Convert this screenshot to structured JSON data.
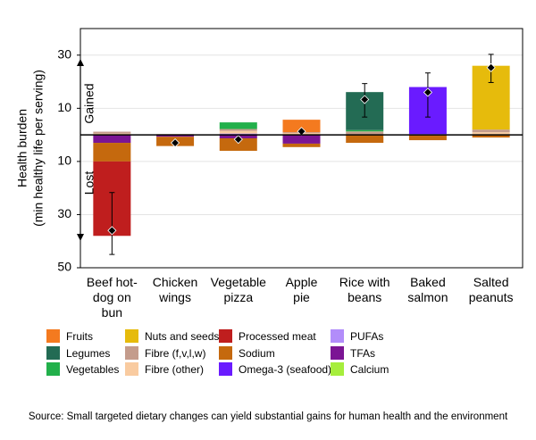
{
  "chart_data": {
    "type": "stacked_bar",
    "y_label": [
      "Health burden",
      "(min healthy life per serving)"
    ],
    "annotations": {
      "gained": "Gained",
      "lost": "Lost"
    },
    "source": "Source: Small targeted dietary changes can yield substantial gains for human health and the environment",
    "categories": [
      "Beef hot-\ndog on\nbun",
      "Chicken\nwings",
      "Vegetable\npizza",
      "Apple\npie",
      "Rice with\nbeans",
      "Baked\nsalmon",
      "Salted\npeanuts"
    ],
    "ylim": [
      -50,
      40
    ],
    "yticks": [
      30,
      10,
      {
        "value": -10,
        "label": "10"
      },
      {
        "value": -30,
        "label": "30"
      },
      {
        "value": -50,
        "label": "50"
      }
    ],
    "grid": true,
    "series": [
      {
        "name": "Fruits",
        "color": "#f47a1f",
        "values": [
          0,
          0,
          0,
          4.7,
          0,
          0,
          0
        ]
      },
      {
        "name": "Legumes",
        "color": "#236b54",
        "values": [
          0,
          0,
          0,
          0,
          14.3,
          0,
          0
        ]
      },
      {
        "name": "Vegetables",
        "color": "#22b04b",
        "values": [
          0,
          0,
          2.5,
          0,
          0.5,
          0,
          0
        ]
      },
      {
        "name": "Nuts and seeds",
        "color": "#e6bb0c",
        "values": [
          0,
          0,
          0,
          0,
          0,
          0,
          24
        ]
      },
      {
        "name": "Fibre (f,v,l,w)",
        "color": "#c49c8c",
        "values": [
          0.7,
          0.3,
          0.7,
          0.3,
          1.3,
          0,
          1
        ]
      },
      {
        "name": "Fibre (other)",
        "color": "#f9cba0",
        "values": [
          0.5,
          0,
          1,
          0.7,
          0,
          0,
          1
        ]
      },
      {
        "name": "Processed meat",
        "color": "#bf1e1e",
        "values": [
          -28,
          0,
          0,
          0,
          0,
          0,
          0
        ]
      },
      {
        "name": "Sodium",
        "color": "#c5690e",
        "values": [
          -7,
          -3.5,
          -4.7,
          -1.3,
          -3,
          -2,
          -1
        ]
      },
      {
        "name": "Omega-3 (seafood)",
        "color": "#6a1bff",
        "values": [
          0,
          0,
          0,
          0,
          0,
          17.7,
          0
        ]
      },
      {
        "name": "PUFAs",
        "color": "#b28dfa",
        "values": [
          0,
          0,
          0.5,
          0,
          0,
          0.3,
          0
        ]
      },
      {
        "name": "TFAs",
        "color": "#7b1594",
        "values": [
          -3,
          -0.7,
          -1.3,
          -3.3,
          0,
          0,
          0
        ]
      },
      {
        "name": "Calcium",
        "color": "#a6ee3c",
        "values": [
          0,
          0,
          0,
          0,
          0,
          0,
          0
        ]
      }
    ],
    "totals": [
      -36,
      -3,
      -1.7,
      1.3,
      13.3,
      16,
      25.3
    ],
    "error_low": [
      -45,
      -3.5,
      -2.2,
      0.8,
      6.7,
      6.7,
      19.7
    ],
    "error_high": [
      -21.7,
      -2.5,
      -1.2,
      1.8,
      19.3,
      23.3,
      30.3
    ]
  }
}
